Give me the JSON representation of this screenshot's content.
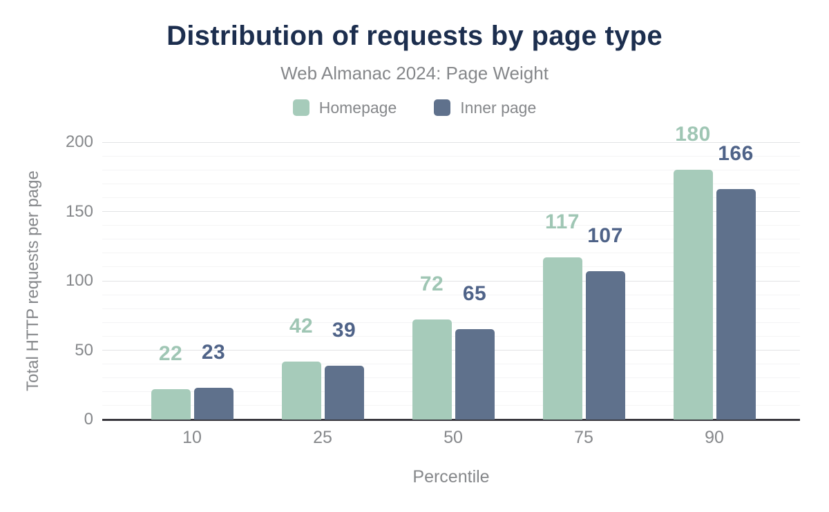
{
  "page": {
    "background": "#ffffff"
  },
  "chart_data": {
    "type": "bar",
    "title": "Distribution of requests by page type",
    "subtitle": "Web Almanac 2024: Page Weight",
    "xlabel": "Percentile",
    "ylabel": "Total HTTP requests per page",
    "categories": [
      "10",
      "25",
      "50",
      "75",
      "90"
    ],
    "series": [
      {
        "name": "Homepage",
        "color": "#a6cbba",
        "label_color": "#9fc6b4",
        "values": [
          22,
          42,
          72,
          117,
          180
        ]
      },
      {
        "name": "Inner page",
        "color": "#5f718c",
        "label_color": "#4f6388",
        "values": [
          23,
          39,
          65,
          107,
          166
        ]
      }
    ],
    "ylim": [
      0,
      200
    ],
    "yticks": [
      0,
      50,
      100,
      150,
      200
    ],
    "grid": {
      "minor_step": 10,
      "major_step": 50,
      "minor_color": "#f4f4f5",
      "major_color": "#e2e3e5"
    },
    "legend_position": "top",
    "colors": {
      "title": "#1c2e4e",
      "text": "#85878a",
      "axis_line": "#39383e"
    }
  }
}
